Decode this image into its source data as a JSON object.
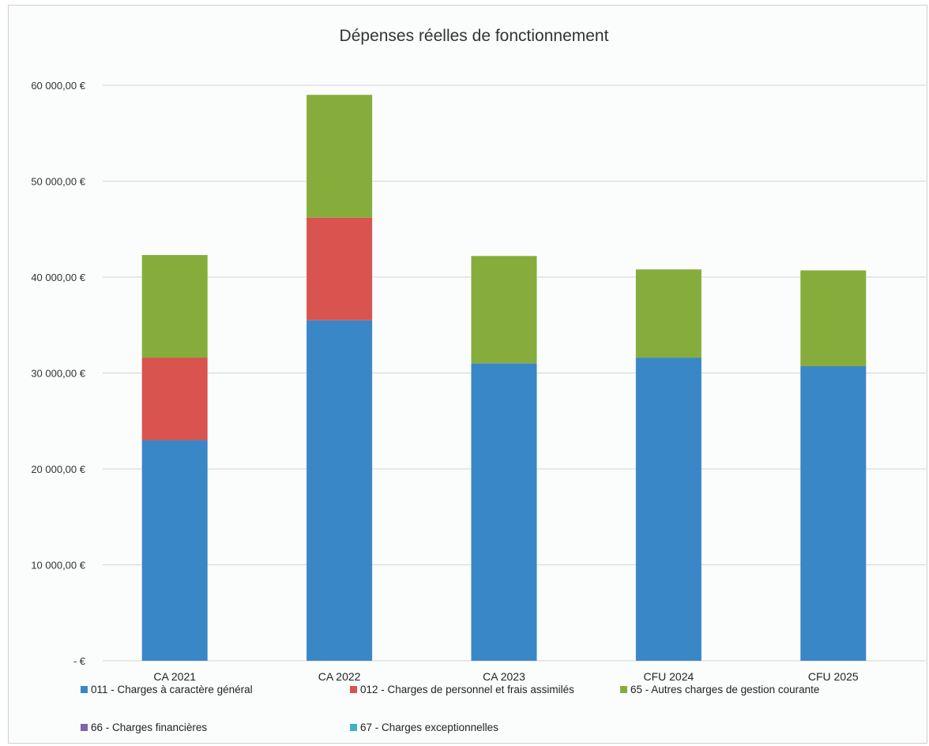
{
  "chart_data": {
    "type": "bar",
    "stacked": true,
    "title": "Dépenses réelles de fonctionnement",
    "xlabel": "",
    "ylabel": "",
    "categories": [
      "CA 2021",
      "CA 2022",
      "CA 2023",
      "CFU 2024",
      "CFU 2025"
    ],
    "ylim": [
      0,
      60000
    ],
    "yticks": [
      0,
      10000,
      20000,
      30000,
      40000,
      50000,
      60000
    ],
    "ytick_labels": [
      "-   €",
      "10 000,00 €",
      "20 000,00 €",
      "30 000,00 €",
      "40 000,00 €",
      "50 000,00 €",
      "60 000,00 €"
    ],
    "grid": true,
    "legend_position": "bottom",
    "series": [
      {
        "name": "011 - Charges à caractère général",
        "color": "#3a87c8",
        "values": [
          23000,
          35500,
          31000,
          31600,
          30700
        ]
      },
      {
        "name": "012 - Charges de personnel et frais assimilés",
        "color": "#d9534f",
        "values": [
          8600,
          10700,
          0,
          0,
          0
        ]
      },
      {
        "name": "65 - Autres charges de gestion courante",
        "color": "#86ad3b",
        "values": [
          10700,
          12800,
          11200,
          9200,
          10000
        ]
      },
      {
        "name": "66 - Charges financières",
        "color": "#7b64a8",
        "values": [
          0,
          0,
          0,
          0,
          0
        ]
      },
      {
        "name": "67 - Charges exceptionnelles",
        "color": "#3bb3c3",
        "values": [
          0,
          0,
          0,
          0,
          0
        ]
      }
    ]
  }
}
